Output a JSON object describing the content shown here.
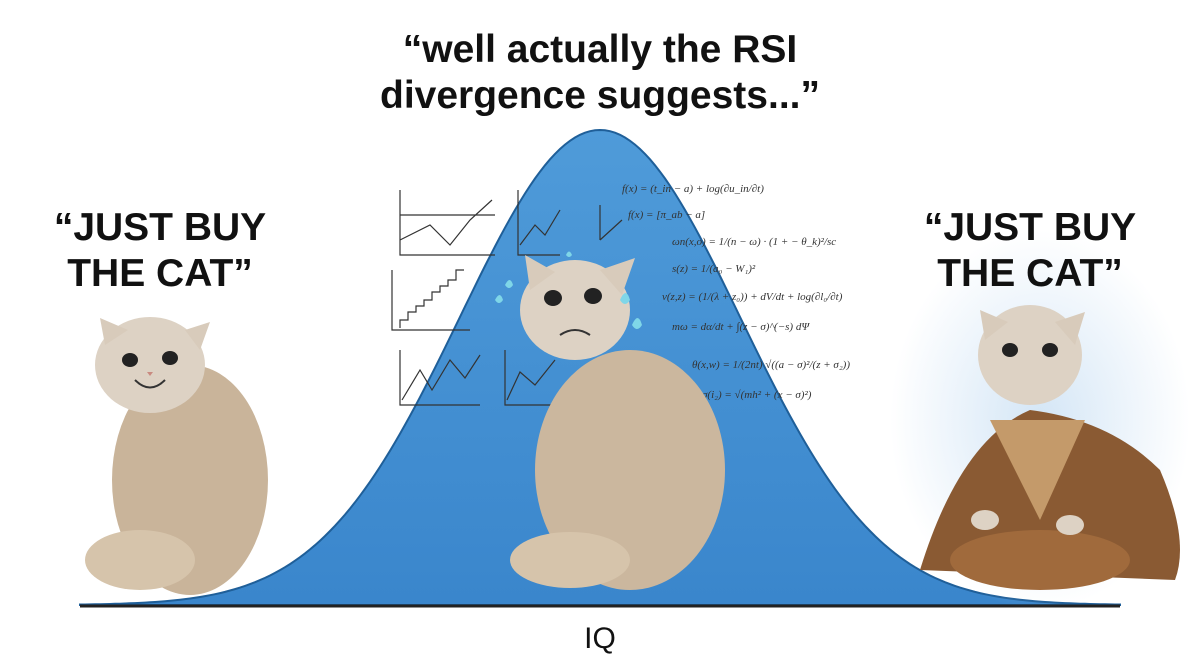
{
  "top_quote": {
    "lines": [
      "“well actually the RSI",
      "divergence suggests...”"
    ]
  },
  "left_quote": {
    "lines": [
      "“JUST BUY",
      "THE CAT”"
    ]
  },
  "right_quote": {
    "lines": [
      "“JUST BUY",
      "THE CAT”"
    ]
  },
  "axis_label": "IQ",
  "formulas": [
    "f(x) = (t_in − a) + log(∂u_in/∂t)",
    "f(x) = [π_ab − a]",
    "ωn(x,o) = 1/(n − ω) · (1 + − θ_k)²/sc",
    "s(z) = 1/(a₀ − W₁)²",
    "v(z,z) = (1/(λ + z₀)) + dV/dt + log(∂l₀/∂t)",
    "mω = dα/dt + ∫(z − σ)^(−s) dΨ",
    "θ(x,w) = 1/(2nt) √((a − σ)²/(z + σ₂))",
    "σ(i₂) = √(mh² + (x − σ)²)"
  ]
}
